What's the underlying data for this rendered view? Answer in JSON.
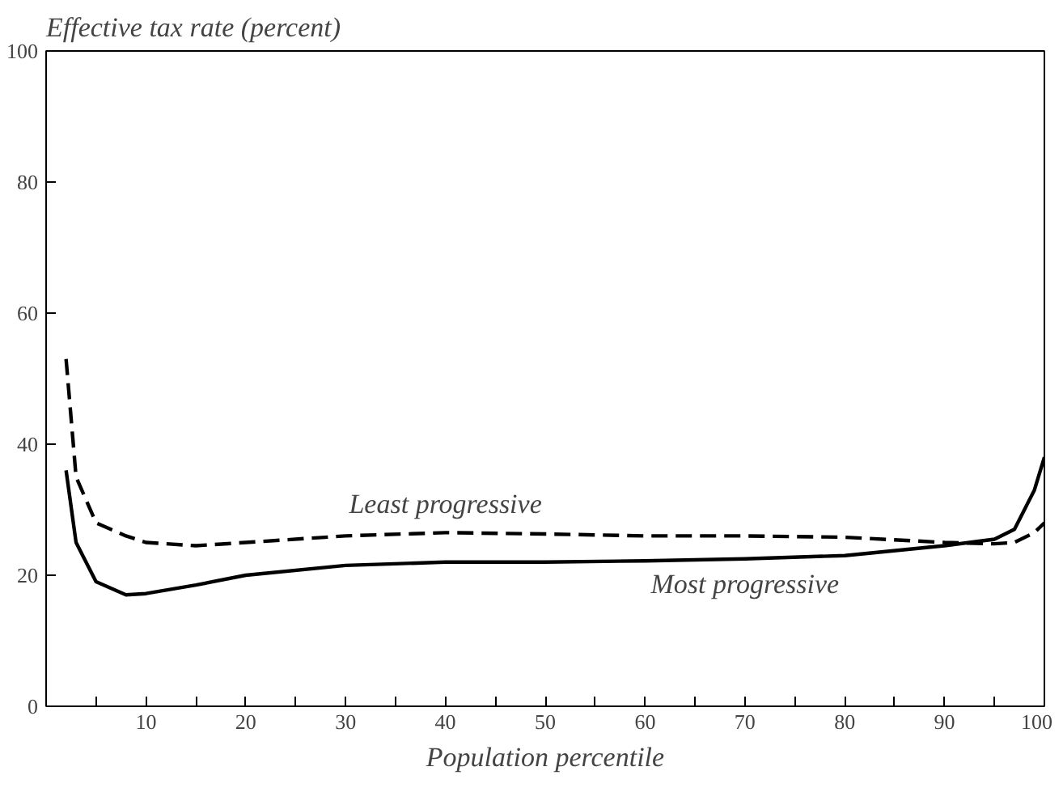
{
  "chart_data": {
    "type": "line",
    "ylabel": "Effective tax rate (percent)",
    "xlabel": "Population percentile",
    "xlim": [
      0,
      100
    ],
    "ylim": [
      0,
      100
    ],
    "xticks": [
      {
        "value": 0,
        "label": null
      },
      {
        "value": 5,
        "label": null
      },
      10,
      {
        "value": 15,
        "label": null
      },
      20,
      {
        "value": 25,
        "label": null
      },
      30,
      {
        "value": 35,
        "label": null
      },
      40,
      {
        "value": 45,
        "label": null
      },
      50,
      {
        "value": 55,
        "label": null
      },
      60,
      {
        "value": 65,
        "label": null
      },
      70,
      {
        "value": 75,
        "label": null
      },
      80,
      {
        "value": 85,
        "label": null
      },
      90,
      {
        "value": 95,
        "label": null
      },
      100
    ],
    "yticks": [
      0,
      20,
      40,
      60,
      80,
      100
    ],
    "grid": false,
    "legend": false,
    "series": [
      {
        "name": "Most progressive",
        "color": "#000000",
        "line_style": "solid",
        "x": [
          2,
          3,
          5,
          8,
          10,
          15,
          20,
          30,
          40,
          50,
          60,
          70,
          80,
          90,
          95,
          97,
          99,
          100
        ],
        "values": [
          36,
          25,
          19,
          17,
          17.2,
          18.5,
          20,
          21.5,
          22,
          22,
          22.2,
          22.5,
          23,
          24.5,
          25.5,
          27,
          33,
          38
        ]
      },
      {
        "name": "Least progressive",
        "color": "#000000",
        "line_style": "dashed",
        "x": [
          2,
          3,
          5,
          8,
          10,
          15,
          20,
          30,
          40,
          50,
          60,
          70,
          80,
          90,
          95,
          97,
          99,
          100
        ],
        "values": [
          53,
          35,
          28,
          26,
          25,
          24.5,
          25,
          26,
          26.5,
          26.3,
          26,
          26,
          25.8,
          25,
          24.8,
          25,
          26.5,
          28
        ]
      }
    ]
  }
}
